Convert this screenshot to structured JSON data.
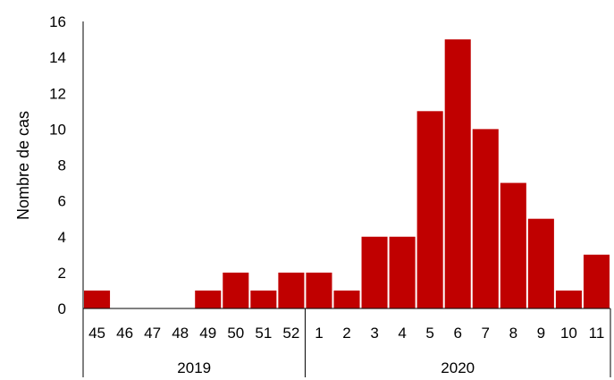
{
  "chart_data": {
    "type": "bar",
    "title": "",
    "xlabel": "",
    "ylabel": "Nombre de cas",
    "ylim": [
      0,
      16
    ],
    "yticks": [
      0,
      2,
      4,
      6,
      8,
      10,
      12,
      14,
      16
    ],
    "grid": false,
    "legend": "none",
    "bar_color": "#C00000",
    "categories": [
      "45",
      "46",
      "47",
      "48",
      "49",
      "50",
      "51",
      "52",
      "1",
      "2",
      "3",
      "4",
      "5",
      "6",
      "7",
      "8",
      "9",
      "10",
      "11"
    ],
    "values": [
      1,
      0,
      0,
      0,
      1,
      2,
      1,
      2,
      2,
      1,
      4,
      4,
      11,
      15,
      10,
      7,
      5,
      1,
      3
    ],
    "groups": [
      {
        "label": "2019",
        "count": 8
      },
      {
        "label": "2020",
        "count": 11
      }
    ]
  }
}
